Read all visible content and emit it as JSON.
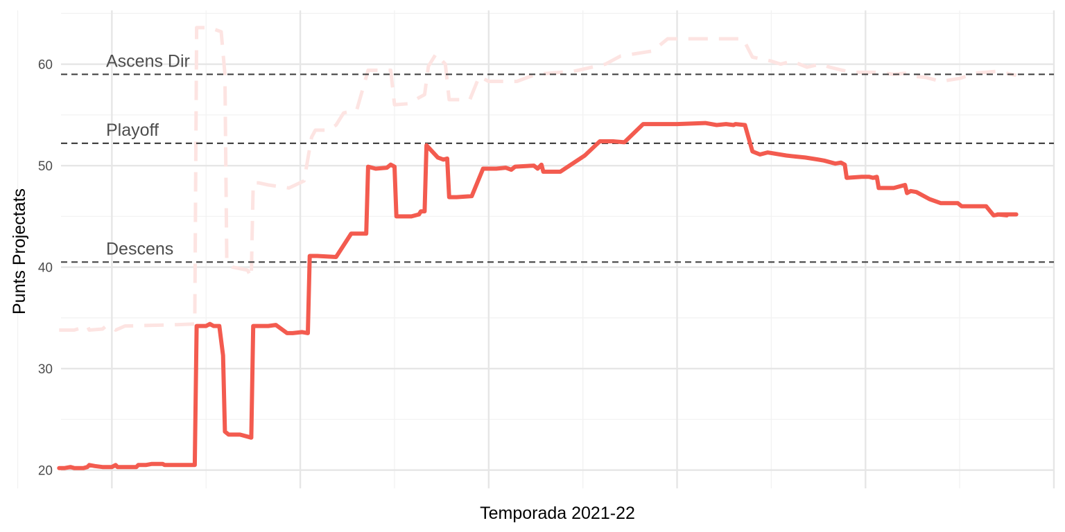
{
  "chart_data": {
    "type": "line",
    "title": "",
    "xlabel": "Temporada 2021-22",
    "ylabel": "Punts Projectats",
    "xlim": [
      -27,
      500
    ],
    "ylim": [
      18.2,
      65.3
    ],
    "y_ticks": [
      20,
      30,
      40,
      50,
      60
    ],
    "x_major_gridlines": [
      0,
      100,
      200,
      300,
      400,
      500
    ],
    "grid": true,
    "colors": {
      "main_line": "#F35B4F",
      "ghost_line": "#FDE4E2",
      "reference": "#444444",
      "grid_major": "#E6E6E6",
      "grid_minor": "#F2F2F2"
    },
    "reference_lines": [
      {
        "label": "Ascens Dir",
        "y": 59.0
      },
      {
        "label": "Playoff",
        "y": 52.2
      },
      {
        "label": "Descens",
        "y": 40.5
      }
    ],
    "series": [
      {
        "style": "solid",
        "points": [
          [
            -28,
            20.2
          ],
          [
            -25,
            20.2
          ],
          [
            -22,
            20.3
          ],
          [
            -20,
            20.2
          ],
          [
            -15,
            20.2
          ],
          [
            -13,
            20.3
          ],
          [
            -12,
            20.5
          ],
          [
            -9,
            20.4
          ],
          [
            -5,
            20.3
          ],
          [
            0,
            20.3
          ],
          [
            2,
            20.5
          ],
          [
            3,
            20.3
          ],
          [
            8,
            20.3
          ],
          [
            13,
            20.3
          ],
          [
            14,
            20.5
          ],
          [
            18,
            20.5
          ],
          [
            21,
            20.6
          ],
          [
            27,
            20.6
          ],
          [
            28,
            20.5
          ],
          [
            44,
            20.5
          ],
          [
            45,
            34.2
          ],
          [
            50,
            34.2
          ],
          [
            52,
            34.4
          ],
          [
            54,
            34.2
          ],
          [
            57,
            34.2
          ],
          [
            59,
            31.3
          ],
          [
            60,
            23.8
          ],
          [
            62,
            23.5
          ],
          [
            64,
            23.5
          ],
          [
            68,
            23.5
          ],
          [
            72,
            23.3
          ],
          [
            74,
            23.2
          ],
          [
            75,
            34.2
          ],
          [
            83,
            34.2
          ],
          [
            87,
            34.3
          ],
          [
            93,
            33.5
          ],
          [
            96,
            33.5
          ],
          [
            101,
            33.6
          ],
          [
            104,
            33.5
          ],
          [
            105,
            41.1
          ],
          [
            109,
            41.1
          ],
          [
            119,
            41.0
          ],
          [
            127,
            43.3
          ],
          [
            135,
            43.3
          ],
          [
            136,
            49.9
          ],
          [
            140,
            49.7
          ],
          [
            146,
            49.8
          ],
          [
            148,
            50.1
          ],
          [
            150,
            49.9
          ],
          [
            151,
            45.0
          ],
          [
            155,
            45.0
          ],
          [
            159,
            45.0
          ],
          [
            163,
            45.2
          ],
          [
            164,
            45.5
          ],
          [
            166,
            45.5
          ],
          [
            167,
            52.0
          ],
          [
            173,
            50.8
          ],
          [
            176,
            50.6
          ],
          [
            178,
            50.7
          ],
          [
            179,
            46.9
          ],
          [
            183,
            46.9
          ],
          [
            191,
            47.0
          ],
          [
            197,
            49.7
          ],
          [
            204,
            49.7
          ],
          [
            209,
            49.8
          ],
          [
            212,
            49.6
          ],
          [
            214,
            49.9
          ],
          [
            224,
            50.0
          ],
          [
            226,
            49.7
          ],
          [
            228,
            50.1
          ],
          [
            229,
            49.4
          ],
          [
            232,
            49.4
          ],
          [
            238,
            49.4
          ],
          [
            251,
            51.0
          ],
          [
            259,
            52.4
          ],
          [
            266,
            52.4
          ],
          [
            272,
            52.3
          ],
          [
            282,
            54.1
          ],
          [
            300,
            54.1
          ],
          [
            315,
            54.2
          ],
          [
            321,
            54.0
          ],
          [
            326,
            54.1
          ],
          [
            330,
            54.0
          ],
          [
            331,
            54.1
          ],
          [
            336,
            54.0
          ],
          [
            340,
            51.4
          ],
          [
            344,
            51.1
          ],
          [
            348,
            51.3
          ],
          [
            358,
            51.0
          ],
          [
            363,
            50.9
          ],
          [
            368,
            50.8
          ],
          [
            375,
            50.6
          ],
          [
            378,
            50.5
          ],
          [
            384,
            50.2
          ],
          [
            387,
            50.3
          ],
          [
            389,
            50.1
          ],
          [
            390,
            48.8
          ],
          [
            398,
            48.9
          ],
          [
            402,
            48.9
          ],
          [
            404,
            48.8
          ],
          [
            406,
            48.9
          ],
          [
            407,
            47.8
          ],
          [
            415,
            47.8
          ],
          [
            421,
            48.1
          ],
          [
            422,
            47.3
          ],
          [
            424,
            47.5
          ],
          [
            427,
            47.4
          ],
          [
            434,
            46.7
          ],
          [
            440,
            46.3
          ],
          [
            449,
            46.3
          ],
          [
            451,
            46.0
          ],
          [
            455,
            46.0
          ],
          [
            459,
            46.0
          ],
          [
            464,
            46.0
          ],
          [
            468,
            45.1
          ],
          [
            471,
            45.2
          ],
          [
            480,
            45.2
          ],
          [
            470,
            45.2
          ],
          [
            475,
            45.1
          ],
          [
            471,
            45.2
          ]
        ]
      },
      {
        "style": "dashed",
        "points": [
          [
            -28,
            33.8
          ],
          [
            -20,
            33.8
          ],
          [
            -13,
            34.2
          ],
          [
            -12,
            33.8
          ],
          [
            -5,
            33.9
          ],
          [
            -3,
            34.2
          ],
          [
            0,
            34.1
          ],
          [
            2,
            33.8
          ],
          [
            7,
            34.2
          ],
          [
            30,
            34.3
          ],
          [
            44,
            34.4
          ],
          [
            45,
            63.6
          ],
          [
            52,
            63.6
          ],
          [
            58,
            63.2
          ],
          [
            60,
            59.0
          ],
          [
            61,
            40.5
          ],
          [
            64,
            40.0
          ],
          [
            72,
            39.7
          ],
          [
            74,
            39.0
          ],
          [
            75,
            48.3
          ],
          [
            78,
            48.3
          ],
          [
            83,
            48.1
          ],
          [
            94,
            47.8
          ],
          [
            102,
            48.5
          ],
          [
            106,
            52.8
          ],
          [
            108,
            53.5
          ],
          [
            115,
            53.5
          ],
          [
            119,
            54.0
          ],
          [
            123,
            55.2
          ],
          [
            130,
            55.5
          ],
          [
            136,
            59.4
          ],
          [
            148,
            59.4
          ],
          [
            150,
            56.0
          ],
          [
            157,
            56.1
          ],
          [
            166,
            57.0
          ],
          [
            168,
            59.8
          ],
          [
            172,
            61.0
          ],
          [
            177,
            60.0
          ],
          [
            179,
            56.5
          ],
          [
            190,
            56.5
          ],
          [
            195,
            58.8
          ],
          [
            200,
            58.3
          ],
          [
            215,
            58.3
          ],
          [
            225,
            59.0
          ],
          [
            245,
            59.3
          ],
          [
            262,
            60.0
          ],
          [
            270,
            60.8
          ],
          [
            287,
            61.3
          ],
          [
            295,
            62.5
          ],
          [
            305,
            62.5
          ],
          [
            320,
            62.5
          ],
          [
            328,
            62.5
          ],
          [
            335,
            62.5
          ],
          [
            340,
            60.7
          ],
          [
            350,
            60.3
          ],
          [
            355,
            60.0
          ],
          [
            361,
            60.3
          ],
          [
            369,
            59.7
          ],
          [
            376,
            60.0
          ],
          [
            381,
            59.7
          ],
          [
            390,
            59.3
          ],
          [
            396,
            59.2
          ],
          [
            407,
            59.2
          ],
          [
            415,
            59.0
          ],
          [
            421,
            59.1
          ],
          [
            426,
            58.8
          ],
          [
            432,
            58.7
          ],
          [
            440,
            58.3
          ],
          [
            450,
            58.6
          ],
          [
            458,
            59.1
          ],
          [
            470,
            59.3
          ],
          [
            480,
            58.9
          ]
        ]
      }
    ]
  }
}
